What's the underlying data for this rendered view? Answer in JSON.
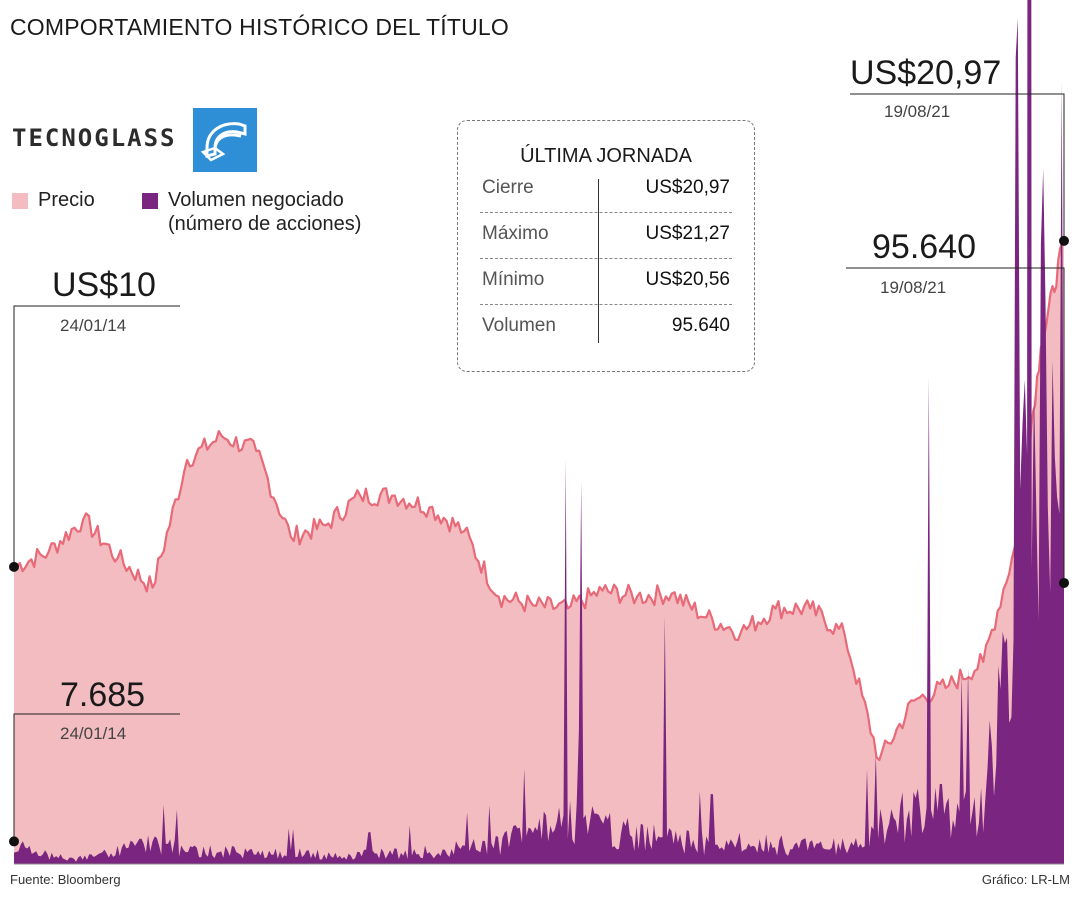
{
  "header": {
    "title": "COMPORTAMIENTO HISTÓRICO DEL TÍTULO"
  },
  "brand": {
    "wordmark": "TECNOGLASS",
    "logo_icon": "tecnoglass-logo-icon",
    "logo_color": "#2e8fd6"
  },
  "legend": {
    "price": "Precio",
    "volume_line1": "Volumen negociado",
    "volume_line2": "(número de acciones)"
  },
  "colors": {
    "price_fill": "#f2bcc0",
    "price_line": "#e86a78",
    "volume_fill": "#7a2580",
    "dot": "#111111"
  },
  "last_session": {
    "title": "ÚLTIMA JORNADA",
    "rows": [
      {
        "label": "Cierre",
        "value": "US$20,97"
      },
      {
        "label": "Máximo",
        "value": "US$21,27"
      },
      {
        "label": "Mínimo",
        "value": "US$20,56"
      },
      {
        "label": "Volumen",
        "value": "95.640"
      }
    ]
  },
  "callouts": {
    "price_start": {
      "value": "US$10",
      "date": "24/01/14"
    },
    "volume_start": {
      "value": "7.685",
      "date": "24/01/14"
    },
    "price_end": {
      "value": "US$20,97",
      "date": "19/08/21"
    },
    "volume_end": {
      "value": "95.640",
      "date": "19/08/21"
    }
  },
  "footer": {
    "source": "Fuente: Bloomberg",
    "credit": "Gráfico: LR-LM"
  },
  "chart_data": {
    "type": "area",
    "title": "COMPORTAMIENTO HISTÓRICO DEL TÍTULO",
    "x_range": [
      "24/01/14",
      "19/08/21"
    ],
    "series": [
      {
        "name": "Precio",
        "unit": "US$",
        "x": [
          "2014-01",
          "2014-04",
          "2014-07",
          "2014-10",
          "2015-01",
          "2015-04",
          "2015-07",
          "2015-10",
          "2016-01",
          "2016-04",
          "2016-07",
          "2016-10",
          "2017-01",
          "2017-04",
          "2017-07",
          "2017-10",
          "2018-01",
          "2018-04",
          "2018-07",
          "2018-10",
          "2019-01",
          "2019-04",
          "2019-07",
          "2019-10",
          "2020-01",
          "2020-04",
          "2020-07",
          "2020-10",
          "2021-01",
          "2021-04",
          "2021-06",
          "2021-08"
        ],
        "values": [
          10.0,
          10.5,
          11.6,
          10.3,
          9.3,
          13.6,
          14.4,
          13.9,
          11.0,
          11.4,
          12.4,
          12.4,
          12.0,
          11.2,
          9.0,
          8.7,
          8.6,
          9.2,
          9.0,
          9.1,
          8.3,
          7.8,
          8.6,
          8.6,
          7.7,
          3.5,
          5.5,
          6.0,
          6.8,
          11.0,
          17.4,
          20.97
        ]
      },
      {
        "name": "Volumen negociado (número de acciones)",
        "x": [
          "2014-01",
          "2014-06",
          "2015-01",
          "2015-06",
          "2016-01",
          "2016-06",
          "2017-01",
          "2017-06",
          "2018-01",
          "2018-06",
          "2019-01",
          "2019-06",
          "2020-01",
          "2020-06",
          "2020-10",
          "2021-01",
          "2021-04",
          "2021-06",
          "2021-08"
        ],
        "values": [
          7685,
          2000,
          9000,
          6000,
          5000,
          4000,
          6000,
          8000,
          20000,
          14000,
          10000,
          9000,
          8000,
          22000,
          25000,
          30000,
          120000,
          250000,
          95640
        ]
      }
    ]
  }
}
